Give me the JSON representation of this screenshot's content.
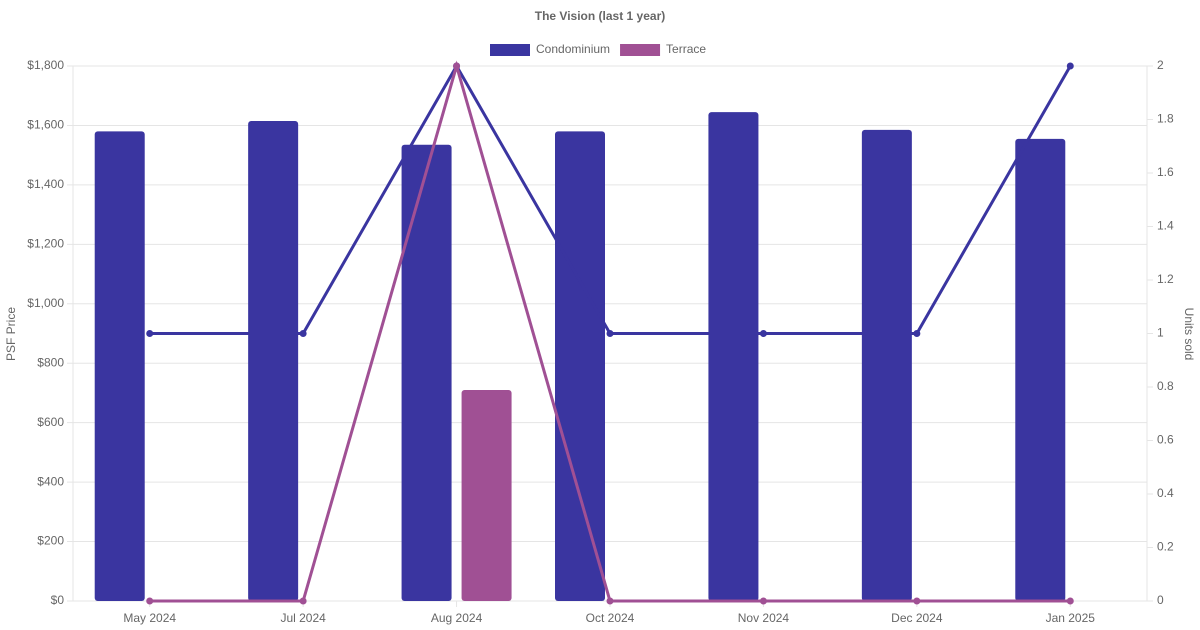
{
  "chart_data": {
    "type": "bar",
    "title": "The Vision (last 1 year)",
    "categories": [
      "May 2024",
      "Jul 2024",
      "Aug 2024",
      "Oct 2024",
      "Nov 2024",
      "Dec 2024",
      "Jan 2025"
    ],
    "series": [
      {
        "name": "Condominium",
        "color": "#3a35a0",
        "values": [
          1580,
          1615,
          1535,
          1580,
          1645,
          1585,
          1555
        ],
        "units": [
          1,
          1,
          2,
          1,
          1,
          1,
          2
        ]
      },
      {
        "name": "Terrace",
        "color": "#a05094",
        "values": [
          null,
          null,
          710,
          null,
          null,
          null,
          null
        ],
        "units": [
          0,
          0,
          2,
          0,
          0,
          0,
          0
        ]
      }
    ],
    "y_label": "PSF Price",
    "y2_label": "Units sold",
    "ylim": [
      0,
      1800
    ],
    "yticks": [
      {
        "value": 0,
        "label": "$0"
      },
      {
        "value": 200,
        "label": "$200"
      },
      {
        "value": 400,
        "label": "$400"
      },
      {
        "value": 600,
        "label": "$600"
      },
      {
        "value": 800,
        "label": "$800"
      },
      {
        "value": 1000,
        "label": "$1,000"
      },
      {
        "value": 1200,
        "label": "$1,200"
      },
      {
        "value": 1400,
        "label": "$1,400"
      },
      {
        "value": 1600,
        "label": "$1,600"
      },
      {
        "value": 1800,
        "label": "$1,800"
      }
    ],
    "y2lim": [
      0,
      2
    ],
    "y2ticks": [
      0,
      0.2,
      0.4,
      0.6,
      0.8,
      1,
      1.2,
      1.4,
      1.6,
      1.8,
      2
    ],
    "grid": true
  }
}
